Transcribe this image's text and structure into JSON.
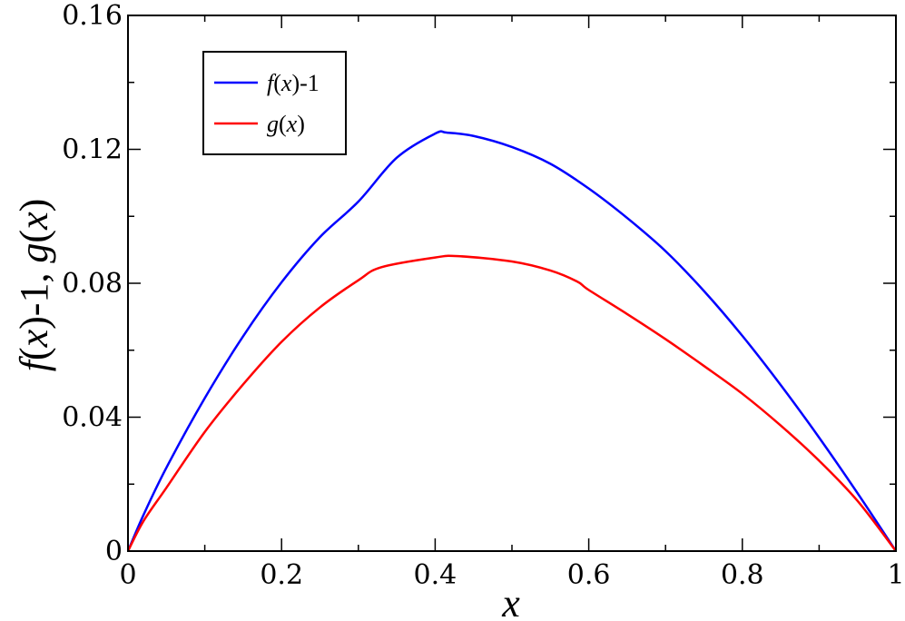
{
  "chart_data": {
    "type": "line",
    "title": "",
    "xlabel": "x",
    "ylabel_parts": {
      "f": "f",
      "x1": "x",
      "mid": ")-1, ",
      "g": "g",
      "x2": "x",
      "open": "(",
      "close": ")"
    },
    "xlim": [
      0,
      1
    ],
    "ylim": [
      0,
      0.16
    ],
    "x_ticks": [
      "0",
      "0.2",
      "0.4",
      "0.6",
      "0.8",
      "1"
    ],
    "y_ticks": [
      "0",
      "0.04",
      "0.08",
      "0.12",
      "0.16"
    ],
    "x_tick_values": [
      0,
      0.2,
      0.4,
      0.6,
      0.8,
      1
    ],
    "y_tick_values": [
      0,
      0.04,
      0.08,
      0.12,
      0.16
    ],
    "grid": false,
    "legend_position": "top-left",
    "series": [
      {
        "key": "f",
        "color": "#0000ff",
        "x": [
          0,
          0.02,
          0.05,
          0.1,
          0.15,
          0.2,
          0.25,
          0.3,
          0.35,
          0.4,
          0.415,
          0.45,
          0.5,
          0.55,
          0.6,
          0.65,
          0.7,
          0.75,
          0.8,
          0.85,
          0.9,
          0.95,
          1.0
        ],
        "y": [
          0,
          0.0107,
          0.0249,
          0.0457,
          0.0642,
          0.0803,
          0.0938,
          0.1044,
          0.1175,
          0.1247,
          0.125,
          0.124,
          0.1207,
          0.1157,
          0.1083,
          0.0995,
          0.0896,
          0.0777,
          0.0643,
          0.0496,
          0.0339,
          0.0173,
          0
        ]
      },
      {
        "key": "g",
        "color": "#ff0000",
        "x": [
          0,
          0.02,
          0.05,
          0.1,
          0.15,
          0.2,
          0.25,
          0.3,
          0.33,
          0.4,
          0.43,
          0.5,
          0.55,
          0.585,
          0.6,
          0.65,
          0.7,
          0.75,
          0.8,
          0.85,
          0.9,
          0.95,
          1.0
        ],
        "y": [
          0,
          0.0089,
          0.0189,
          0.0356,
          0.0498,
          0.0625,
          0.0728,
          0.0809,
          0.0848,
          0.0877,
          0.0881,
          0.0865,
          0.0838,
          0.0805,
          0.078,
          0.0708,
          0.0633,
          0.0553,
          0.047,
          0.0375,
          0.027,
          0.015,
          0
        ]
      }
    ],
    "legend": {
      "f": {
        "fn": "f",
        "var": "x",
        "open": "(",
        "close": ")",
        "suffix": "-1"
      },
      "g": {
        "fn": "g",
        "var": "x",
        "open": "(",
        "close": ")",
        "suffix": ""
      }
    }
  }
}
